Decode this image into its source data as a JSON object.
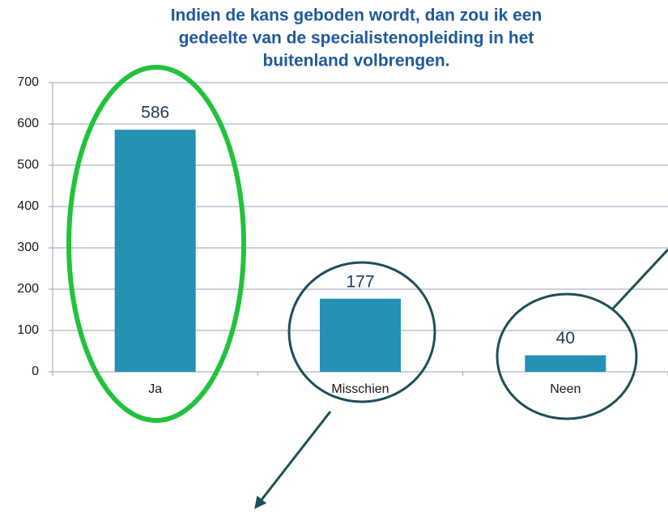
{
  "chart_data": {
    "type": "bar",
    "title": [
      "Indien de kans geboden wordt, dan zou ik een",
      "gedeelte van de specialistenopleiding in het",
      "buitenland volbrengen."
    ],
    "categories": [
      "Ja",
      "Misschien",
      "Neen"
    ],
    "values": [
      586,
      177,
      40
    ],
    "color": "#2490b4",
    "ylim": [
      0,
      700
    ],
    "yticks": [
      0,
      100,
      200,
      300,
      400,
      500,
      600,
      700
    ],
    "grid": true
  }
}
